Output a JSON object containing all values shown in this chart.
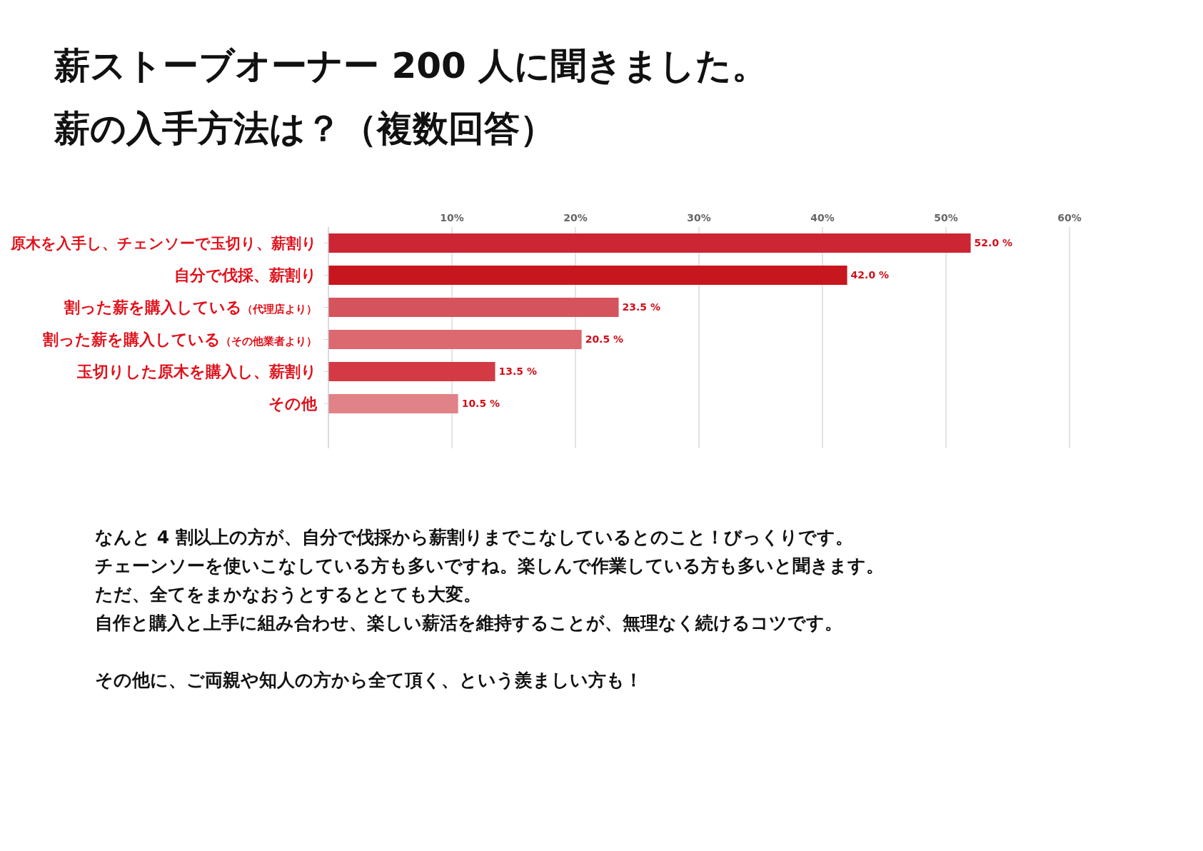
{
  "chart_data": {
    "type": "bar",
    "orientation": "horizontal",
    "title": "薪ストーブオーナー 200 人に聞きました。",
    "subtitle": "薪の入手方法は？（複数回答）",
    "categories": [
      "原木を入手し、チェンソーで玉切り、薪割り",
      "自分で伐採、薪割り",
      "割った薪を購入している（代理店より）",
      "割った薪を購入している（その他業者より）",
      "玉切りした原木を購入し、薪割り",
      "その他"
    ],
    "values": [
      52.0,
      42.0,
      23.5,
      20.5,
      13.5,
      10.5
    ],
    "value_labels": [
      "52.0 %",
      "42.0 %",
      "23.5 %",
      "20.5 %",
      "13.5 %",
      "10.5 %"
    ],
    "colors": [
      "#cc2533",
      "#c8161e",
      "#d5535c",
      "#dc6870",
      "#d33a44",
      "#e08287"
    ],
    "xlim": [
      0,
      60
    ],
    "xticks": [
      {
        "value": 0,
        "label": null
      },
      {
        "value": 10,
        "label": "10%"
      },
      {
        "value": 20,
        "label": "20%"
      },
      {
        "value": 30,
        "label": "30%"
      },
      {
        "value": 40,
        "label": "40%"
      },
      {
        "value": 50,
        "label": "50%"
      },
      {
        "value": 60,
        "label": "60%"
      }
    ],
    "grid": "x",
    "legend": false,
    "annotations": [
      "なんと 4 割以上の方が、自分で伐採から薪割りまでこなしているとのこと！びっくりです。",
      "チェーンソーを使いこなしている方も多いですね。楽しんで作業している方も多いと聞きます。",
      "ただ、全てをまかなおうとするととても大変。",
      "自作と購入と上手に組み合わせ、楽しい薪活を維持することが、無理なく続けるコツです。",
      "その他に、ご両親や知人の方から全て頂く、という羨ましい方も！"
    ]
  }
}
